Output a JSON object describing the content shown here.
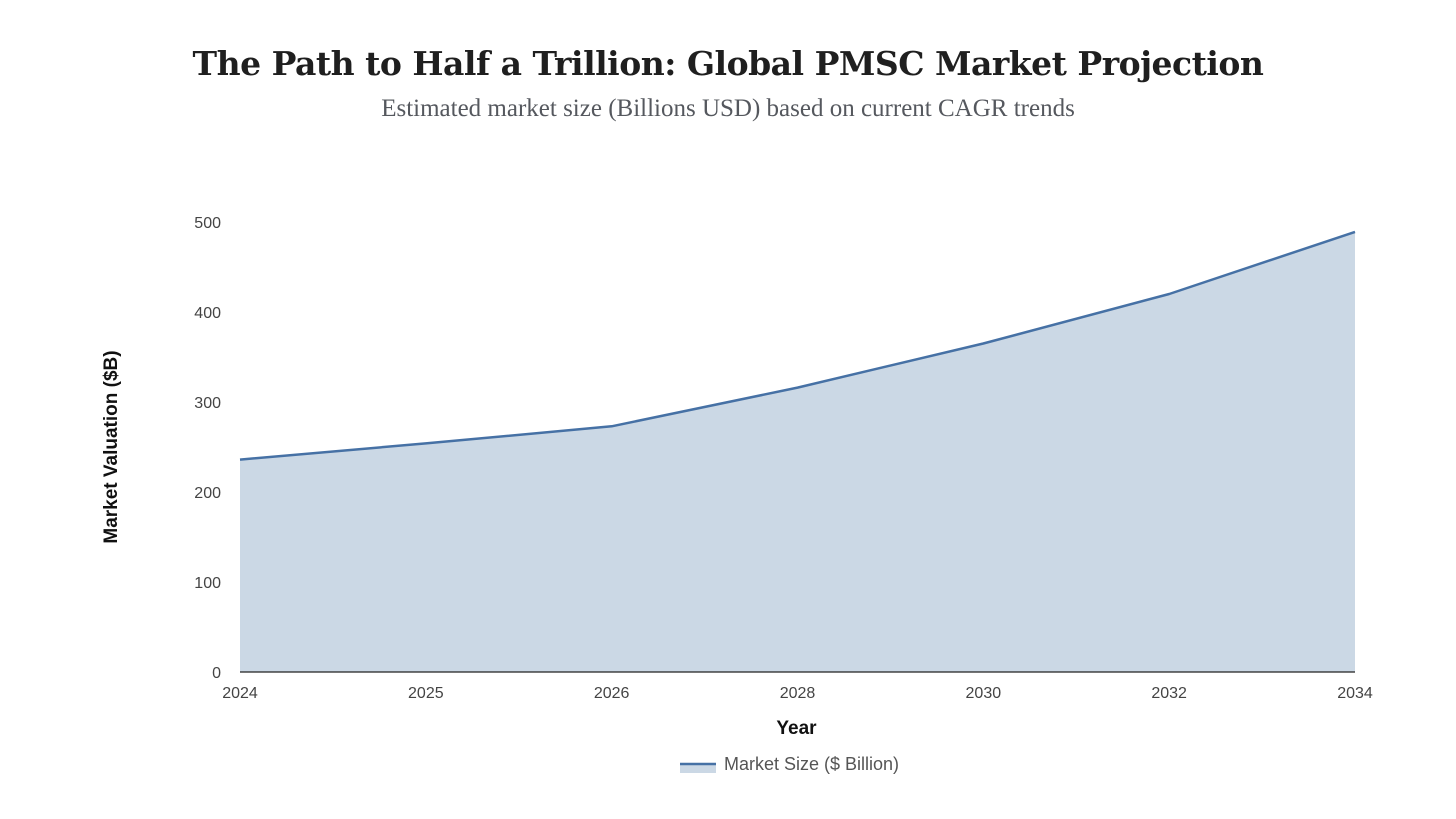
{
  "title": "The Path to Half a Trillion: Global PMSC Market Projection",
  "subtitle": "Estimated market size (Billions USD) based on current CAGR trends",
  "chart_data": {
    "type": "area",
    "title": "The Path to Half a Trillion: Global PMSC Market Projection",
    "subtitle": "Estimated market size (Billions USD) based on current CAGR trends",
    "xlabel": "Year",
    "ylabel": "Market Valuation ($B)",
    "categories": [
      "2024",
      "2025",
      "2026",
      "2028",
      "2030",
      "2032",
      "2034"
    ],
    "series": [
      {
        "name": "Market Size ($ Billion)",
        "values": [
          236,
          254,
          273,
          316,
          365,
          420,
          489
        ]
      }
    ],
    "ylim": [
      0,
      500
    ],
    "yticks": [
      0,
      100,
      200,
      300,
      400,
      500
    ],
    "grid": false,
    "legend": "bottom-center",
    "colors": {
      "line": "#4671a5",
      "fill": "#cbd8e5",
      "axis": "#222222"
    }
  }
}
